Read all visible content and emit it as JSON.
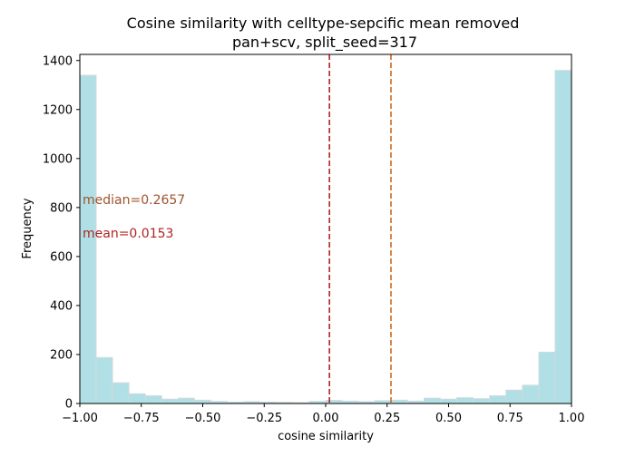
{
  "chart_data": {
    "type": "bar",
    "title": "Cosine similarity with celltype-sepcific mean removed",
    "subtitle": "pan+scv, split_seed=317",
    "xlabel": "cosine similarity",
    "ylabel": "Frequency",
    "xlim": [
      -1.0,
      1.0
    ],
    "ylim": [
      0,
      1425
    ],
    "grid": false,
    "bar_color": "#b0e0e6",
    "bar_edge_color": "#d9d9d9",
    "xticks": [
      -1.0,
      -0.75,
      -0.5,
      -0.25,
      0.0,
      0.25,
      0.5,
      0.75,
      1.0
    ],
    "xtick_labels": [
      "−1.00",
      "−0.75",
      "−0.50",
      "−0.25",
      "0.00",
      "0.25",
      "0.50",
      "0.75",
      "1.00"
    ],
    "yticks": [
      0,
      200,
      400,
      600,
      800,
      1000,
      1200,
      1400
    ],
    "ytick_labels": [
      "0",
      "200",
      "400",
      "600",
      "800",
      "1000",
      "1200",
      "1400"
    ],
    "bin_edges": [
      -1.0,
      -0.9333,
      -0.8667,
      -0.8,
      -0.7333,
      -0.6667,
      -0.6,
      -0.5333,
      -0.4667,
      -0.4,
      -0.3333,
      -0.2667,
      -0.2,
      -0.1333,
      -0.0667,
      0.0,
      0.0667,
      0.1333,
      0.2,
      0.2667,
      0.3333,
      0.4,
      0.4667,
      0.5333,
      0.6,
      0.6667,
      0.7333,
      0.8,
      0.8667,
      0.9333,
      1.0
    ],
    "values": [
      1340,
      188,
      85,
      40,
      32,
      18,
      22,
      14,
      9,
      6,
      8,
      6,
      5,
      4,
      9,
      13,
      10,
      8,
      12,
      14,
      10,
      22,
      18,
      24,
      20,
      32,
      55,
      75,
      210,
      1360
    ],
    "lines": [
      {
        "x": 0.0153,
        "color": "#b22222",
        "style": "dashed"
      },
      {
        "x": 0.2657,
        "color": "#d2691e",
        "style": "dashed"
      }
    ],
    "annotations": [
      {
        "text": "median=0.2657",
        "color": "#a0522d"
      },
      {
        "text": "mean=0.0153",
        "color": "#b22222"
      }
    ]
  }
}
